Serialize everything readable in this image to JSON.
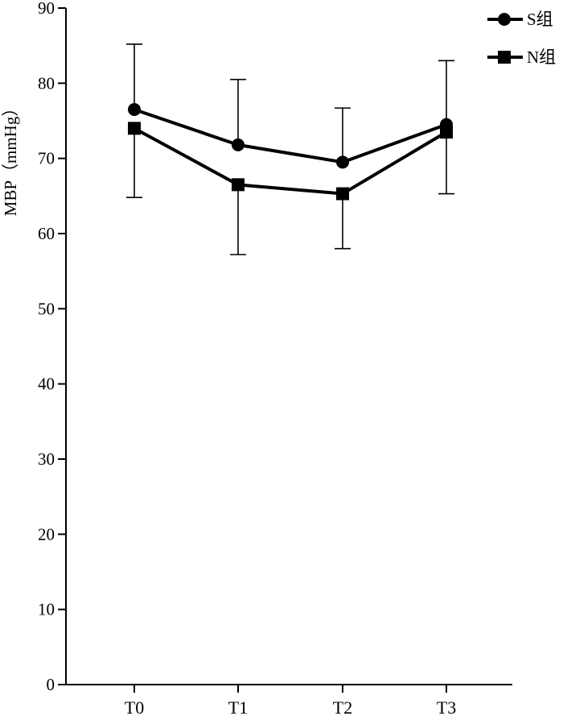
{
  "chart_data": {
    "type": "line",
    "ylabel": "MBP（mmHg）",
    "xlabel": "",
    "title": "",
    "categories": [
      "T0",
      "T1",
      "T2",
      "T3"
    ],
    "ylim": [
      0,
      90
    ],
    "yticks": [
      0,
      10,
      20,
      30,
      40,
      50,
      60,
      70,
      80,
      90
    ],
    "legend_position": "top-right",
    "series": [
      {
        "name": "S组",
        "marker": "circle",
        "values": [
          76.5,
          71.8,
          69.5,
          74.5
        ],
        "error_upper": [
          85.2,
          80.5,
          76.7,
          83.0
        ]
      },
      {
        "name": "N组",
        "marker": "square",
        "values": [
          74.0,
          66.5,
          65.3,
          73.5
        ],
        "error_lower": [
          64.8,
          57.2,
          58.0,
          65.3
        ]
      }
    ],
    "colors": {
      "line": "#000000",
      "background": "#ffffff"
    }
  }
}
